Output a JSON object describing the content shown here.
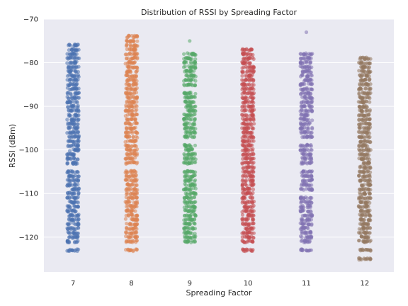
{
  "chart_data": {
    "type": "scatter",
    "subtype": "strip",
    "title": "Distribution of RSSI by Spreading Factor",
    "xlabel": "Spreading Factor",
    "ylabel": "RSSI (dBm)",
    "ylim": [
      -128,
      -70
    ],
    "yticks": [
      -70,
      -80,
      -90,
      -100,
      -110,
      -120
    ],
    "ytick_labels": [
      "−70",
      "−80",
      "−90",
      "−100",
      "−110",
      "−120"
    ],
    "grid": true,
    "legend": "none",
    "categories": [
      "7",
      "8",
      "9",
      "10",
      "11",
      "12"
    ],
    "series": [
      {
        "category": "7",
        "color": "#4c72b0",
        "observed_values": [
          -76,
          -77,
          -78,
          -79,
          -80,
          -81,
          -82,
          -83,
          -84,
          -85,
          -86,
          -87,
          -88,
          -89,
          -90,
          -91,
          -92,
          -93,
          -94,
          -95,
          -96,
          -97,
          -98,
          -99,
          -100,
          -101,
          -102,
          -103,
          -105,
          -106,
          -107,
          -108,
          -109,
          -110,
          -111,
          -112,
          -113,
          -114,
          -115,
          -116,
          -117,
          -118,
          -119,
          -120,
          -121,
          -123
        ]
      },
      {
        "category": "8",
        "color": "#dd8452",
        "observed_values": [
          -74,
          -75,
          -76,
          -77,
          -78,
          -79,
          -80,
          -81,
          -82,
          -83,
          -84,
          -85,
          -86,
          -87,
          -88,
          -89,
          -90,
          -91,
          -92,
          -93,
          -94,
          -95,
          -96,
          -97,
          -98,
          -99,
          -100,
          -101,
          -102,
          -103,
          -105,
          -106,
          -107,
          -108,
          -109,
          -110,
          -111,
          -112,
          -113,
          -114,
          -115,
          -116,
          -117,
          -118,
          -119,
          -120,
          -121,
          -123
        ]
      },
      {
        "category": "9",
        "color": "#55a868",
        "observed_values": [
          -75,
          -78,
          -79,
          -80,
          -81,
          -82,
          -83,
          -84,
          -85,
          -87,
          -88,
          -89,
          -90,
          -91,
          -92,
          -93,
          -94,
          -95,
          -96,
          -97,
          -99,
          -100,
          -101,
          -102,
          -103,
          -105,
          -106,
          -107,
          -108,
          -109,
          -110,
          -111,
          -112,
          -113,
          -114,
          -115,
          -116,
          -117,
          -118,
          -119,
          -120,
          -121
        ]
      },
      {
        "category": "10",
        "color": "#c44e52",
        "observed_values": [
          -77,
          -78,
          -79,
          -80,
          -81,
          -82,
          -83,
          -84,
          -85,
          -86,
          -87,
          -88,
          -89,
          -90,
          -91,
          -92,
          -93,
          -94,
          -95,
          -96,
          -97,
          -98,
          -99,
          -100,
          -101,
          -102,
          -103,
          -104,
          -105,
          -106,
          -107,
          -108,
          -109,
          -110,
          -111,
          -112,
          -113,
          -114,
          -115,
          -116,
          -117,
          -118,
          -119,
          -120,
          -121,
          -123
        ]
      },
      {
        "category": "11",
        "color": "#8172b3",
        "observed_values": [
          -73,
          -78,
          -79,
          -80,
          -81,
          -82,
          -83,
          -84,
          -85,
          -86,
          -87,
          -88,
          -89,
          -90,
          -91,
          -92,
          -93,
          -94,
          -95,
          -96,
          -97,
          -99,
          -100,
          -101,
          -102,
          -103,
          -105,
          -106,
          -107,
          -108,
          -109,
          -111,
          -112,
          -113,
          -114,
          -115,
          -116,
          -117,
          -118,
          -119,
          -120,
          -121,
          -123
        ]
      },
      {
        "category": "12",
        "color": "#937860",
        "observed_values": [
          -79,
          -80,
          -81,
          -82,
          -83,
          -84,
          -85,
          -86,
          -87,
          -88,
          -89,
          -90,
          -91,
          -92,
          -93,
          -94,
          -95,
          -96,
          -97,
          -98,
          -99,
          -100,
          -101,
          -102,
          -103,
          -104,
          -105,
          -106,
          -107,
          -108,
          -109,
          -110,
          -111,
          -112,
          -113,
          -114,
          -115,
          -116,
          -117,
          -118,
          -119,
          -120,
          -121,
          -123,
          -125
        ]
      }
    ]
  }
}
